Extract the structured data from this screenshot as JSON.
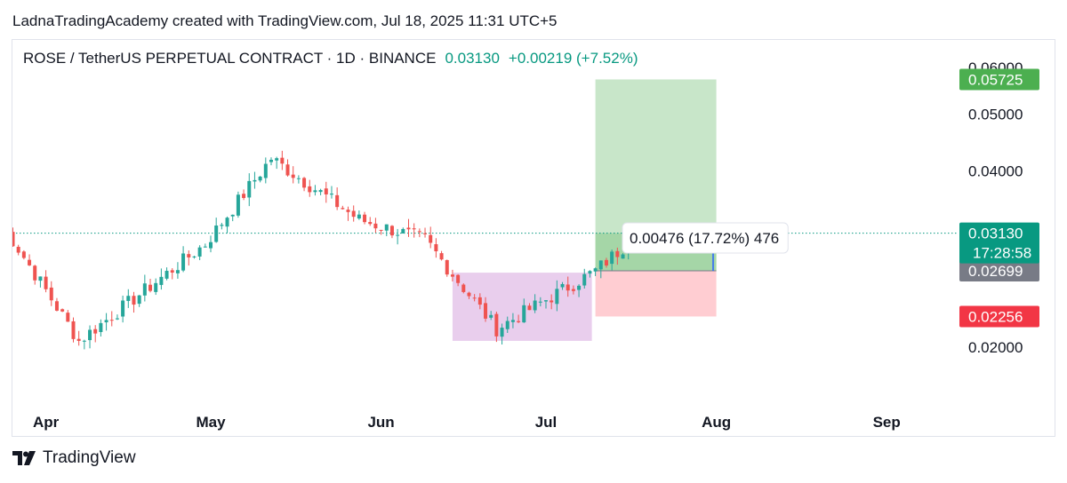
{
  "caption": "LadnaTradingAcademy created with TradingView.com, Jul 18, 2025 11:31 UTC+5",
  "footer": {
    "brand": "TradingView"
  },
  "colors": {
    "up": "#26a69a",
    "down": "#ef5350",
    "profit_zone": "#c8e6c9",
    "profit_entry_zone": "#a5d6a7",
    "loss_zone": "#ffcdd2",
    "consolidation_zone": "#e1bee7",
    "target_label": "#4caf50",
    "stop_label": "#f23645",
    "price_label": "#089981",
    "entry_label": "#787b86",
    "arrow": "#2962ff"
  },
  "chart_data": {
    "type": "candlestick",
    "title": "ROSE / TetherUS PERPETUAL CONTRACT · 1D · BINANCE",
    "last_price": "0.03130",
    "change": "+0.00219 (+7.52%)",
    "scale": "log",
    "ylim": [
      0.0175,
      0.065
    ],
    "y_ticks": [
      "0.06000",
      "0.05000",
      "0.04000",
      "0.02000"
    ],
    "x_ticks": [
      "Apr",
      "May",
      "Jun",
      "Jul",
      "Aug",
      "Sep"
    ],
    "price_labels": {
      "target": "0.05725",
      "current": "0.03130",
      "countdown": "17:28:58",
      "entry": "0.02699",
      "stop": "0.02256"
    },
    "annotation": "0.00476 (17.72%) 476",
    "ohlc_points_approx": [
      {
        "date": "Mar 24",
        "close": 0.0325
      },
      {
        "date": "Apr 7",
        "close": 0.0205
      },
      {
        "date": "Apr 30",
        "close": 0.03
      },
      {
        "date": "May 12",
        "close": 0.042
      },
      {
        "date": "May 28",
        "close": 0.033
      },
      {
        "date": "Jun 9",
        "close": 0.0305
      },
      {
        "date": "Jun 22",
        "close": 0.0215
      },
      {
        "date": "Jul 10",
        "close": 0.027
      },
      {
        "date": "Jul 18",
        "close": 0.0313
      }
    ],
    "zones": {
      "long_position": {
        "from": "Jul 10",
        "to": "Aug 1",
        "entry": 0.02699,
        "target": 0.05725,
        "stop": 0.02256
      },
      "consolidation": {
        "from": "Jun 14",
        "to": "Jul 10",
        "high": 0.0268,
        "low": 0.0205
      }
    }
  }
}
